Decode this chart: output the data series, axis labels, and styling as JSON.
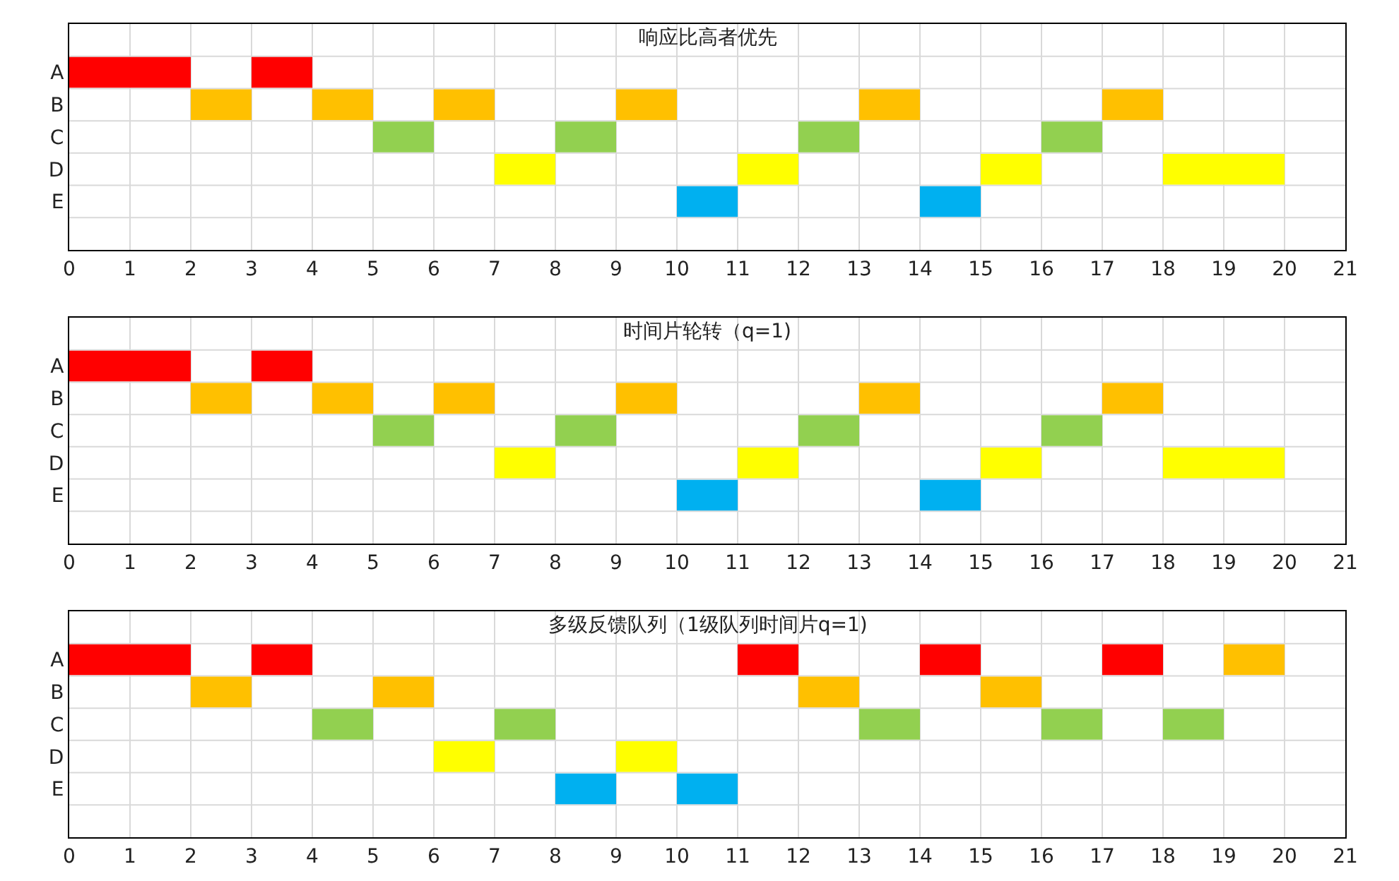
{
  "chart_data": [
    {
      "type": "bar",
      "title": "响应比高者优先",
      "orientation": "horizontal",
      "categories": [
        "A",
        "B",
        "C",
        "D",
        "E"
      ],
      "xlim": [
        0,
        21
      ],
      "xticks": [
        0,
        1,
        2,
        3,
        4,
        5,
        6,
        7,
        8,
        9,
        10,
        11,
        12,
        13,
        14,
        15,
        16,
        17,
        18,
        19,
        20,
        21
      ],
      "grid": true,
      "series": [
        {
          "base": [
            0,
            2,
            5,
            7,
            10
          ],
          "values": [
            2,
            1,
            1,
            1,
            1
          ],
          "colors": [
            "#ff0000",
            "#ffc000",
            "#92d050",
            "#ffff00",
            "#00b0f0"
          ]
        },
        {
          "base": [
            3,
            4,
            8,
            11,
            14
          ],
          "values": [
            1,
            1,
            1,
            1,
            1
          ],
          "colors": [
            "#ff0000",
            "#ffc000",
            "#92d050",
            "#ffff00",
            "#00b0f0"
          ]
        },
        {
          "base": [
            null,
            6,
            12,
            15,
            null
          ],
          "values": [
            null,
            1,
            1,
            1,
            null
          ],
          "colors": [
            "#ff0000",
            "#ffc000",
            "#92d050",
            "#ffff00",
            "#00b0f0"
          ]
        },
        {
          "base": [
            null,
            9,
            16,
            18,
            null
          ],
          "values": [
            null,
            1,
            1,
            2,
            null
          ],
          "colors": [
            "#ff0000",
            "#ffc000",
            "#92d050",
            "#ffff00",
            "#00b0f0"
          ]
        },
        {
          "base": [
            null,
            13,
            null,
            null,
            null
          ],
          "values": [
            null,
            1,
            null,
            null,
            null
          ],
          "colors": [
            "#ff0000",
            "#ffc000",
            "#92d050",
            "#ffff00",
            "#00b0f0"
          ]
        },
        {
          "base": [
            null,
            17,
            null,
            null,
            null
          ],
          "values": [
            null,
            1,
            null,
            null,
            null
          ],
          "colors": [
            "#ff0000",
            "#ffc000",
            "#92d050",
            "#ffff00",
            "#00b0f0"
          ]
        }
      ]
    },
    {
      "type": "bar",
      "title": "时间片轮转（q=1)",
      "orientation": "horizontal",
      "categories": [
        "A",
        "B",
        "C",
        "D",
        "E"
      ],
      "xlim": [
        0,
        21
      ],
      "xticks": [
        0,
        1,
        2,
        3,
        4,
        5,
        6,
        7,
        8,
        9,
        10,
        11,
        12,
        13,
        14,
        15,
        16,
        17,
        18,
        19,
        20,
        21
      ],
      "grid": true,
      "series": [
        {
          "base": [
            0,
            2,
            5,
            7,
            10
          ],
          "values": [
            2,
            1,
            1,
            1,
            1
          ],
          "colors": [
            "#ff0000",
            "#ffc000",
            "#92d050",
            "#ffff00",
            "#00b0f0"
          ]
        },
        {
          "base": [
            3,
            4,
            8,
            11,
            14
          ],
          "values": [
            1,
            1,
            1,
            1,
            1
          ],
          "colors": [
            "#ff0000",
            "#ffc000",
            "#92d050",
            "#ffff00",
            "#00b0f0"
          ]
        },
        {
          "base": [
            null,
            6,
            12,
            15,
            null
          ],
          "values": [
            null,
            1,
            1,
            1,
            null
          ],
          "colors": [
            "#ff0000",
            "#ffc000",
            "#92d050",
            "#ffff00",
            "#00b0f0"
          ]
        },
        {
          "base": [
            null,
            9,
            16,
            18,
            null
          ],
          "values": [
            null,
            1,
            1,
            2,
            null
          ],
          "colors": [
            "#ff0000",
            "#ffc000",
            "#92d050",
            "#ffff00",
            "#00b0f0"
          ]
        },
        {
          "base": [
            null,
            13,
            null,
            null,
            null
          ],
          "values": [
            null,
            1,
            null,
            null,
            null
          ],
          "colors": [
            "#ff0000",
            "#ffc000",
            "#92d050",
            "#ffff00",
            "#00b0f0"
          ]
        },
        {
          "base": [
            null,
            17,
            null,
            null,
            null
          ],
          "values": [
            null,
            1,
            null,
            null,
            null
          ],
          "colors": [
            "#ff0000",
            "#ffc000",
            "#92d050",
            "#ffff00",
            "#00b0f0"
          ]
        }
      ]
    },
    {
      "type": "bar",
      "title": "多级反馈队列（1级队列时间片q=1)",
      "orientation": "horizontal",
      "categories": [
        "A",
        "B",
        "C",
        "D",
        "E"
      ],
      "xlim": [
        0,
        21
      ],
      "xticks": [
        0,
        1,
        2,
        3,
        4,
        5,
        6,
        7,
        8,
        9,
        10,
        11,
        12,
        13,
        14,
        15,
        16,
        17,
        18,
        19,
        20,
        21
      ],
      "grid": true,
      "series": [
        {
          "base": [
            0,
            2,
            4,
            6,
            8
          ],
          "values": [
            2,
            1,
            1,
            1,
            1
          ],
          "colors": [
            "#ff0000",
            "#ffc000",
            "#92d050",
            "#ffff00",
            "#00b0f0"
          ]
        },
        {
          "base": [
            3,
            5,
            7,
            9,
            10
          ],
          "values": [
            1,
            1,
            1,
            1,
            1
          ],
          "colors": [
            "#ff0000",
            "#ffc000",
            "#92d050",
            "#ffff00",
            "#00b0f0"
          ]
        },
        {
          "base": [
            11,
            12,
            13,
            null,
            null
          ],
          "values": [
            1,
            1,
            1,
            null,
            null
          ],
          "colors": [
            "#ff0000",
            "#ffc000",
            "#92d050",
            "#ffff00",
            "#00b0f0"
          ]
        },
        {
          "base": [
            14,
            15,
            16,
            null,
            null
          ],
          "values": [
            1,
            1,
            1,
            null,
            null
          ],
          "colors": [
            "#ff0000",
            "#ffc000",
            "#92d050",
            "#ffff00",
            "#00b0f0"
          ]
        },
        {
          "base": [
            17,
            null,
            18,
            null,
            null
          ],
          "values": [
            1,
            null,
            1,
            null,
            null
          ],
          "colors": [
            "#ff0000",
            "#ffc000",
            "#92d050",
            "#ffff00",
            "#00b0f0"
          ]
        },
        {
          "base": [
            19,
            null,
            null,
            null,
            null
          ],
          "values": [
            1,
            null,
            null,
            null,
            null
          ],
          "colors": [
            "#ffc000",
            "#ffc000",
            "#92d050",
            "#ffff00",
            "#00b0f0"
          ]
        }
      ]
    }
  ]
}
